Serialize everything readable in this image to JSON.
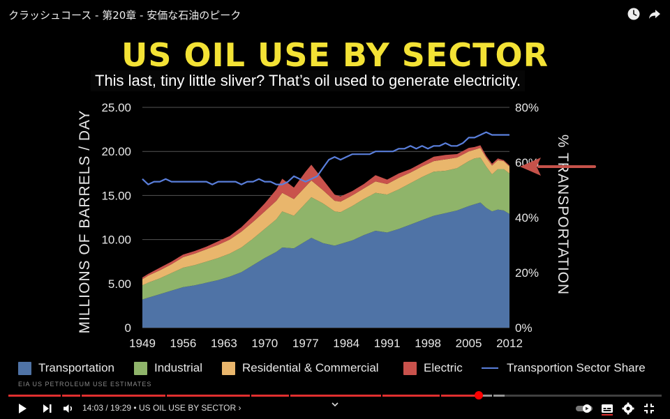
{
  "video": {
    "title": "クラッシュコース - 第20章 - 安価な石油のピーク",
    "caption": "This last, tiny little sliver? That’s oil used to generate electricity.",
    "source_note": "EIA US PETROLEUM USE ESTIMATES"
  },
  "slide": {
    "title": "US OIL USE BY SECTOR"
  },
  "player": {
    "time_current": "14:03",
    "time_total": "19:29",
    "time_separator": " / ",
    "chapter_label": "• US OIL USE BY SECTOR",
    "chapter_arrow": "›",
    "progress_played": 0.72,
    "progress_buffered": 0.76,
    "accent_color": "#e02f2f"
  },
  "chart_data": {
    "type": "area",
    "title": "US OIL USE BY SECTOR",
    "ylabel": "MILLIONS OF BARRELS / DAY",
    "y2label": "% TRANSPORTATION",
    "xlabel": "",
    "ylim": [
      0,
      25
    ],
    "y2lim": [
      0,
      80
    ],
    "xlim": [
      1949,
      2012
    ],
    "yticks": [
      "0",
      "5.00",
      "10.00",
      "15.00",
      "20.00",
      "25.00"
    ],
    "y2ticks": [
      "0%",
      "20%",
      "40%",
      "60%",
      "80%"
    ],
    "xticks": [
      "1949",
      "1956",
      "1963",
      "1970",
      "1977",
      "1984",
      "1991",
      "1998",
      "2005",
      "2012"
    ],
    "grid": true,
    "legend_position": "bottom",
    "x": [
      1949,
      1950,
      1952,
      1954,
      1956,
      1958,
      1960,
      1962,
      1964,
      1966,
      1968,
      1970,
      1972,
      1973,
      1975,
      1977,
      1978,
      1980,
      1982,
      1983,
      1985,
      1987,
      1989,
      1991,
      1993,
      1995,
      1997,
      1999,
      2001,
      2003,
      2005,
      2006,
      2007,
      2008,
      2009,
      2010,
      2011,
      2012
    ],
    "series": [
      {
        "name": "Transportation",
        "kind": "area",
        "color": "#4f73a6",
        "values": [
          3.2,
          3.4,
          3.8,
          4.2,
          4.6,
          4.8,
          5.1,
          5.4,
          5.8,
          6.3,
          7.1,
          7.9,
          8.6,
          9.1,
          9.0,
          9.8,
          10.2,
          9.6,
          9.3,
          9.5,
          9.9,
          10.5,
          11.0,
          10.8,
          11.2,
          11.7,
          12.2,
          12.7,
          13.0,
          13.3,
          13.8,
          14.0,
          14.2,
          13.6,
          13.2,
          13.4,
          13.3,
          12.9
        ]
      },
      {
        "name": "Industrial",
        "kind": "area",
        "color": "#8fb46a",
        "values": [
          1.6,
          1.7,
          1.8,
          2.0,
          2.2,
          2.3,
          2.4,
          2.5,
          2.6,
          2.8,
          3.0,
          3.3,
          3.7,
          4.1,
          3.7,
          4.3,
          4.6,
          4.5,
          3.9,
          3.6,
          3.9,
          4.1,
          4.3,
          4.3,
          4.5,
          4.7,
          4.9,
          5.0,
          4.8,
          4.8,
          5.1,
          5.2,
          5.1,
          4.7,
          4.2,
          4.6,
          4.7,
          4.6
        ]
      },
      {
        "name": "Residential & Commercial",
        "kind": "area",
        "color": "#e9b66c",
        "values": [
          0.7,
          0.8,
          0.9,
          1.0,
          1.2,
          1.3,
          1.4,
          1.5,
          1.6,
          1.8,
          1.9,
          2.0,
          2.1,
          2.1,
          1.9,
          1.9,
          1.9,
          1.5,
          1.2,
          1.2,
          1.2,
          1.2,
          1.3,
          1.2,
          1.3,
          1.2,
          1.2,
          1.2,
          1.3,
          1.2,
          1.1,
          1.0,
          1.1,
          1.0,
          1.0,
          1.0,
          0.9,
          0.8
        ]
      },
      {
        "name": "Electric",
        "kind": "area",
        "color": "#c9524c",
        "values": [
          0.2,
          0.2,
          0.3,
          0.3,
          0.3,
          0.3,
          0.3,
          0.4,
          0.4,
          0.5,
          0.7,
          0.9,
          1.3,
          1.6,
          1.3,
          1.7,
          1.8,
          1.2,
          0.7,
          0.6,
          0.5,
          0.5,
          0.7,
          0.5,
          0.5,
          0.4,
          0.4,
          0.5,
          0.5,
          0.4,
          0.4,
          0.3,
          0.3,
          0.2,
          0.2,
          0.2,
          0.1,
          0.1
        ]
      },
      {
        "name": "Transportion Sector Share",
        "kind": "line",
        "axis": "right",
        "color": "#5a7fdc",
        "x": [
          1949,
          1950,
          1951,
          1952,
          1953,
          1954,
          1955,
          1956,
          1957,
          1958,
          1959,
          1960,
          1961,
          1962,
          1963,
          1964,
          1965,
          1966,
          1967,
          1968,
          1969,
          1970,
          1971,
          1972,
          1973,
          1974,
          1975,
          1976,
          1977,
          1978,
          1979,
          1980,
          1981,
          1982,
          1983,
          1984,
          1985,
          1986,
          1987,
          1988,
          1989,
          1990,
          1991,
          1992,
          1993,
          1994,
          1995,
          1996,
          1997,
          1998,
          1999,
          2000,
          2001,
          2002,
          2003,
          2004,
          2005,
          2006,
          2007,
          2008,
          2009,
          2010,
          2011,
          2012
        ],
        "values": [
          54,
          52,
          53,
          53,
          54,
          53,
          53,
          53,
          53,
          53,
          53,
          53,
          52,
          53,
          53,
          53,
          53,
          52,
          53,
          53,
          54,
          53,
          53,
          52,
          52,
          53,
          55,
          54,
          53,
          54,
          55,
          58,
          61,
          62,
          61,
          62,
          63,
          63,
          63,
          63,
          64,
          64,
          64,
          64,
          65,
          65,
          66,
          65,
          66,
          65,
          66,
          66,
          67,
          66,
          66,
          67,
          69,
          69,
          70,
          71,
          70,
          70,
          70,
          70
        ]
      }
    ],
    "annotation": "arrow pointing at the right-axis share line near 60%"
  }
}
